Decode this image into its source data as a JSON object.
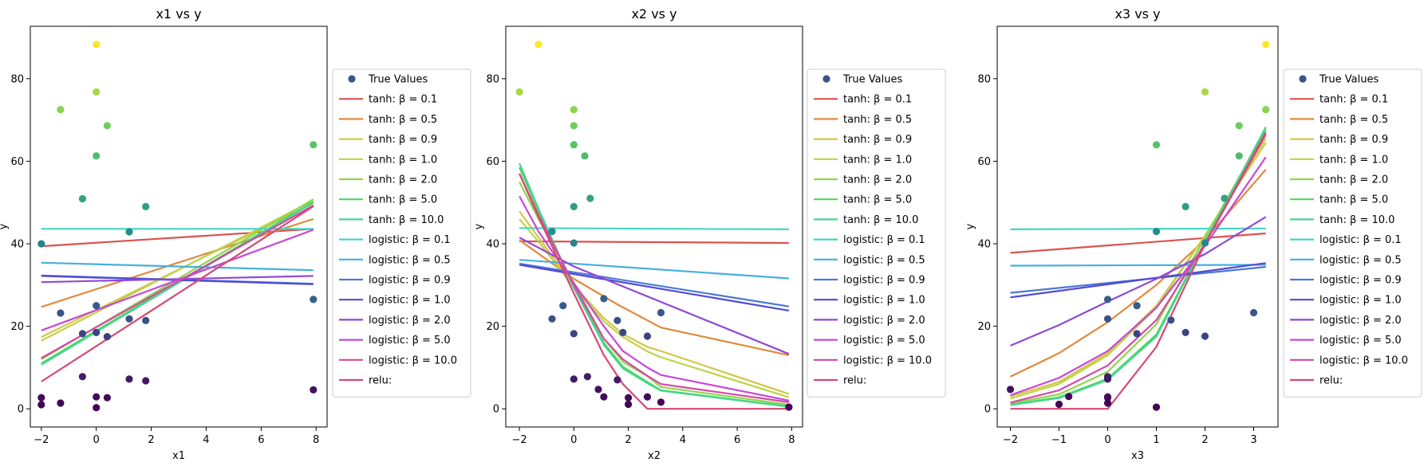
{
  "legend_entries": [
    {
      "label": "True Values",
      "kind": "scatter",
      "color": "#3b528b"
    },
    {
      "label": "tanh:  β = 0.1",
      "kind": "line",
      "color": "#d9534f"
    },
    {
      "label": "tanh:  β = 0.5",
      "kind": "line",
      "color": "#e08a3c"
    },
    {
      "label": "tanh:  β = 0.9",
      "kind": "line",
      "color": "#d4c648"
    },
    {
      "label": "tanh:  β = 1.0",
      "kind": "line",
      "color": "#bcd447"
    },
    {
      "label": "tanh:  β = 2.0",
      "kind": "line",
      "color": "#8ed64a"
    },
    {
      "label": "tanh:  β = 5.0",
      "kind": "line",
      "color": "#4fd65c"
    },
    {
      "label": "tanh:  β = 10.0",
      "kind": "line",
      "color": "#45d68f"
    },
    {
      "label": "logistic:  β = 0.1",
      "kind": "line",
      "color": "#45d6c3"
    },
    {
      "label": "logistic:  β = 0.5",
      "kind": "line",
      "color": "#45b0dc"
    },
    {
      "label": "logistic:  β = 0.9",
      "kind": "line",
      "color": "#4a78d6"
    },
    {
      "label": "logistic:  β = 1.0",
      "kind": "line",
      "color": "#5348d6"
    },
    {
      "label": "logistic:  β = 2.0",
      "kind": "line",
      "color": "#9048d6"
    },
    {
      "label": "logistic:  β = 5.0",
      "kind": "line",
      "color": "#c648d6"
    },
    {
      "label": "logistic:  β = 10.0",
      "kind": "line",
      "color": "#d648a8"
    },
    {
      "label": "relu:",
      "kind": "line",
      "color": "#d64874"
    }
  ],
  "chart_data": [
    {
      "type": "scatter",
      "title": "x1 vs y",
      "xlabel": "x1",
      "ylabel": "y",
      "xlim": [
        -2.4,
        8.4
      ],
      "ylim": [
        -4.4,
        92.7
      ],
      "xticks": [
        -2,
        0,
        2,
        4,
        6,
        8
      ],
      "yticks": [
        0,
        20,
        40,
        60,
        80
      ],
      "legend_position": "right",
      "scatter": [
        [
          0.0,
          88.3
        ],
        [
          -1.3,
          72.5
        ],
        [
          0.0,
          76.8
        ],
        [
          0.4,
          68.6
        ],
        [
          0.0,
          61.3
        ],
        [
          -0.5,
          50.9
        ],
        [
          1.8,
          49.0
        ],
        [
          1.2,
          42.9
        ],
        [
          -2.0,
          40.0
        ],
        [
          7.9,
          64.0
        ],
        [
          7.9,
          26.5
        ],
        [
          -1.3,
          23.2
        ],
        [
          0.0,
          25.0
        ],
        [
          -0.5,
          18.2
        ],
        [
          0.0,
          18.5
        ],
        [
          0.4,
          17.5
        ],
        [
          1.2,
          21.8
        ],
        [
          1.8,
          21.4
        ],
        [
          -0.5,
          7.8
        ],
        [
          1.2,
          7.2
        ],
        [
          1.8,
          6.8
        ],
        [
          -2.0,
          2.7
        ],
        [
          -2.0,
          1.0
        ],
        [
          -1.3,
          1.4
        ],
        [
          0.0,
          2.9
        ],
        [
          0.4,
          2.7
        ],
        [
          0.0,
          0.3
        ],
        [
          7.9,
          4.6
        ]
      ],
      "series": [
        {
          "name": "tanh:  β = 0.1",
          "x": [
            -2,
            7.9
          ],
          "y": [
            39.4,
            43.6
          ]
        },
        {
          "name": "tanh:  β = 0.5",
          "x": [
            -2,
            7.9
          ],
          "y": [
            24.7,
            46.0
          ]
        },
        {
          "name": "tanh:  β = 0.9",
          "x": [
            -2,
            7.9
          ],
          "y": [
            17.4,
            49.8
          ]
        },
        {
          "name": "tanh:  β = 1.0",
          "x": [
            -2,
            7.9
          ],
          "y": [
            16.5,
            50.5
          ]
        },
        {
          "name": "tanh:  β = 2.0",
          "x": [
            -2,
            7.9
          ],
          "y": [
            12.0,
            50.8
          ]
        },
        {
          "name": "tanh:  β = 5.0",
          "x": [
            -2,
            7.9
          ],
          "y": [
            11.0,
            50.2
          ]
        },
        {
          "name": "tanh:  β = 10.0",
          "x": [
            -2,
            7.9
          ],
          "y": [
            10.7,
            50.0
          ]
        },
        {
          "name": "logistic:  β = 0.1",
          "x": [
            -2,
            7.9
          ],
          "y": [
            43.6,
            43.6
          ]
        },
        {
          "name": "logistic:  β = 0.5",
          "x": [
            -2,
            7.9
          ],
          "y": [
            35.4,
            33.6
          ]
        },
        {
          "name": "logistic:  β = 0.9",
          "x": [
            -2,
            7.9
          ],
          "y": [
            32.3,
            30.3
          ]
        },
        {
          "name": "logistic:  β = 1.0",
          "x": [
            -2,
            7.9
          ],
          "y": [
            32.2,
            30.2
          ]
        },
        {
          "name": "logistic:  β = 2.0",
          "x": [
            -2,
            7.9
          ],
          "y": [
            30.7,
            32.2
          ]
        },
        {
          "name": "logistic:  β = 5.0",
          "x": [
            -2,
            7.9
          ],
          "y": [
            19.0,
            43.4
          ]
        },
        {
          "name": "logistic:  β = 10.0",
          "x": [
            -2,
            7.9
          ],
          "y": [
            12.3,
            49.3
          ]
        },
        {
          "name": "relu:",
          "x": [
            -2,
            7.9
          ],
          "y": [
            6.6,
            49.1
          ]
        }
      ]
    },
    {
      "type": "scatter",
      "title": "x2 vs y",
      "xlabel": "x2",
      "ylabel": "y",
      "xlim": [
        -2.5,
        8.4
      ],
      "ylim": [
        -4.4,
        92.7
      ],
      "xticks": [
        -2,
        0,
        2,
        4,
        6,
        8
      ],
      "yticks": [
        0,
        20,
        40,
        60,
        80
      ],
      "legend_position": "right",
      "scatter": [
        [
          -1.3,
          88.3
        ],
        [
          -2.0,
          76.8
        ],
        [
          0.0,
          72.5
        ],
        [
          0.0,
          68.6
        ],
        [
          0.0,
          64.0
        ],
        [
          0.4,
          61.3
        ],
        [
          0.6,
          51.0
        ],
        [
          0.0,
          49.0
        ],
        [
          -0.8,
          43.0
        ],
        [
          0.0,
          40.2
        ],
        [
          1.1,
          26.7
        ],
        [
          3.2,
          23.3
        ],
        [
          -0.4,
          25.0
        ],
        [
          -0.8,
          21.8
        ],
        [
          1.6,
          21.4
        ],
        [
          1.8,
          18.5
        ],
        [
          2.7,
          17.6
        ],
        [
          0.0,
          18.2
        ],
        [
          0.0,
          7.2
        ],
        [
          0.5,
          7.8
        ],
        [
          1.6,
          7.0
        ],
        [
          0.9,
          4.7
        ],
        [
          1.1,
          2.9
        ],
        [
          2.0,
          2.7
        ],
        [
          2.0,
          1.1
        ],
        [
          2.7,
          2.9
        ],
        [
          3.2,
          1.6
        ],
        [
          7.9,
          0.4
        ]
      ],
      "series": [
        {
          "name": "tanh:  β = 0.1",
          "x": [
            -2,
            7.9
          ],
          "y": [
            40.6,
            40.2
          ]
        },
        {
          "name": "tanh:  β = 0.5",
          "x": [
            -2,
            0,
            1.6,
            3.2,
            7.9
          ],
          "y": [
            40.9,
            31.5,
            25.3,
            19.7,
            13.0
          ]
        },
        {
          "name": "tanh:  β = 0.9",
          "x": [
            -2,
            -1.3,
            0,
            1.1,
            1.8,
            2.7,
            3.2,
            7.9
          ],
          "y": [
            47.9,
            41.5,
            29.9,
            22.0,
            18.1,
            15.0,
            14.0,
            3.6
          ]
        },
        {
          "name": "tanh:  β = 1.0",
          "x": [
            -2,
            -1.3,
            0,
            1.1,
            1.8,
            2.7,
            3.2,
            7.9
          ],
          "y": [
            46.0,
            40.5,
            29.5,
            21.2,
            17.4,
            13.9,
            12.5,
            2.8
          ]
        },
        {
          "name": "tanh:  β = 2.0",
          "x": [
            -2,
            -1.3,
            0,
            1.1,
            1.8,
            2.7,
            3.2,
            7.9
          ],
          "y": [
            55.0,
            46.0,
            30.5,
            17.0,
            11.4,
            7.9,
            5.3,
            1.0
          ]
        },
        {
          "name": "tanh:  β = 5.0",
          "x": [
            -2,
            -1.3,
            0,
            1.1,
            1.8,
            2.7,
            3.2,
            7.9
          ],
          "y": [
            58.5,
            48.0,
            29.5,
            16.0,
            10.2,
            6.5,
            4.5,
            0.6
          ]
        },
        {
          "name": "tanh:  β = 10.0",
          "x": [
            -2,
            -1.3,
            0,
            1.1,
            1.8,
            2.7,
            3.2,
            7.9
          ],
          "y": [
            59.5,
            48.5,
            29.3,
            15.5,
            9.8,
            6.2,
            4.4,
            0.5
          ]
        },
        {
          "name": "logistic:  β = 0.1",
          "x": [
            -2,
            7.9
          ],
          "y": [
            43.8,
            43.5
          ]
        },
        {
          "name": "logistic:  β = 0.5",
          "x": [
            -2,
            7.9
          ],
          "y": [
            36.1,
            31.6
          ]
        },
        {
          "name": "logistic:  β = 0.9",
          "x": [
            -2,
            7.9
          ],
          "y": [
            35.2,
            24.8
          ]
        },
        {
          "name": "logistic:  β = 1.0",
          "x": [
            -2,
            7.9
          ],
          "y": [
            34.9,
            23.8
          ]
        },
        {
          "name": "logistic:  β = 2.0",
          "x": [
            -2,
            0,
            7.9
          ],
          "y": [
            41.5,
            34.5,
            13.3
          ]
        },
        {
          "name": "logistic:  β = 5.0",
          "x": [
            -2,
            -1.3,
            0,
            1.1,
            1.8,
            2.7,
            3.2,
            7.9
          ],
          "y": [
            51.5,
            43.0,
            30.5,
            20.0,
            14.0,
            10.0,
            8.2,
            2.0
          ]
        },
        {
          "name": "logistic:  β = 10.0",
          "x": [
            -2,
            -1.3,
            0,
            1.1,
            1.8,
            2.7,
            3.2,
            7.9
          ],
          "y": [
            57.0,
            47.0,
            30.0,
            17.0,
            12.0,
            8.0,
            6.0,
            1.6
          ]
        },
        {
          "name": "relu:",
          "x": [
            -2,
            -1.3,
            0,
            1.1,
            1.8,
            2.7,
            3.2,
            7.9
          ],
          "y": [
            57.0,
            46.5,
            28.0,
            13.0,
            6.0,
            0.0,
            0.0,
            0.0
          ]
        }
      ]
    },
    {
      "type": "scatter",
      "title": "x3 vs y",
      "xlabel": "x3",
      "ylabel": "y",
      "xlim": [
        -2.27,
        3.5
      ],
      "ylim": [
        -4.4,
        92.7
      ],
      "xticks": [
        -2,
        -1,
        0,
        1,
        2,
        3
      ],
      "yticks": [
        0,
        20,
        40,
        60,
        80
      ],
      "legend_position": "right",
      "scatter": [
        [
          3.25,
          88.3
        ],
        [
          2.0,
          76.8
        ],
        [
          3.25,
          72.5
        ],
        [
          2.7,
          68.6
        ],
        [
          1.0,
          64.0
        ],
        [
          2.7,
          61.3
        ],
        [
          2.4,
          51.0
        ],
        [
          1.6,
          49.0
        ],
        [
          1.0,
          43.0
        ],
        [
          2.0,
          40.2
        ],
        [
          0.0,
          26.5
        ],
        [
          0.6,
          25.0
        ],
        [
          1.3,
          21.5
        ],
        [
          0.0,
          21.8
        ],
        [
          3.0,
          23.3
        ],
        [
          0.6,
          18.2
        ],
        [
          1.6,
          18.5
        ],
        [
          2.0,
          17.6
        ],
        [
          0.0,
          7.8
        ],
        [
          0.0,
          7.2
        ],
        [
          -0.8,
          3.0
        ],
        [
          -2.0,
          4.7
        ],
        [
          -1.0,
          1.1
        ],
        [
          0.0,
          2.9
        ],
        [
          0.0,
          2.7
        ],
        [
          0.0,
          1.4
        ],
        [
          1.0,
          0.4
        ]
      ],
      "series": [
        {
          "name": "tanh:  β = 0.1",
          "x": [
            -2,
            3.25
          ],
          "y": [
            37.8,
            42.5
          ]
        },
        {
          "name": "tanh:  β = 0.5",
          "x": [
            -2,
            -1,
            0,
            1,
            2,
            3.25
          ],
          "y": [
            7.8,
            13.5,
            21.0,
            30.0,
            41.0,
            58.0
          ]
        },
        {
          "name": "tanh:  β = 0.9",
          "x": [
            -2,
            -1,
            0,
            1,
            2,
            3.25
          ],
          "y": [
            3.0,
            6.5,
            13.5,
            25.0,
            42.0,
            64.5
          ]
        },
        {
          "name": "tanh:  β = 1.0",
          "x": [
            -2,
            -1,
            0,
            1,
            2,
            3.25
          ],
          "y": [
            2.5,
            6.0,
            13.0,
            24.5,
            42.0,
            65.5
          ]
        },
        {
          "name": "tanh:  β = 2.0",
          "x": [
            -2,
            -1,
            0,
            1,
            2,
            3.25
          ],
          "y": [
            1.3,
            3.5,
            9.0,
            20.5,
            41.5,
            67.5
          ]
        },
        {
          "name": "tanh:  β = 5.0",
          "x": [
            -2,
            -1,
            0,
            1,
            2,
            3.25
          ],
          "y": [
            1.0,
            2.8,
            7.3,
            18.0,
            40.5,
            68.0
          ]
        },
        {
          "name": "tanh:  β = 10.0",
          "x": [
            -2,
            -1,
            0,
            1,
            2,
            3.25
          ],
          "y": [
            0.9,
            2.6,
            7.0,
            17.5,
            40.3,
            68.3
          ]
        },
        {
          "name": "logistic:  β = 0.1",
          "x": [
            -2,
            3.25
          ],
          "y": [
            43.5,
            43.7
          ]
        },
        {
          "name": "logistic:  β = 0.5",
          "x": [
            -2,
            3.25
          ],
          "y": [
            34.7,
            34.9
          ]
        },
        {
          "name": "logistic:  β = 0.9",
          "x": [
            -2,
            3.25
          ],
          "y": [
            28.1,
            34.4
          ]
        },
        {
          "name": "logistic:  β = 1.0",
          "x": [
            -2,
            3.25
          ],
          "y": [
            27.0,
            35.3
          ]
        },
        {
          "name": "logistic:  β = 2.0",
          "x": [
            -2,
            -1,
            0,
            1,
            2,
            3.25
          ],
          "y": [
            15.3,
            20.3,
            26.0,
            31.5,
            37.5,
            46.5
          ]
        },
        {
          "name": "logistic:  β = 5.0",
          "x": [
            -2,
            -1,
            0,
            1,
            2,
            3.25
          ],
          "y": [
            3.3,
            7.5,
            14.0,
            24.5,
            39.5,
            61.0
          ]
        },
        {
          "name": "logistic:  β = 10.0",
          "x": [
            -2,
            -1,
            0,
            1,
            2,
            3.25
          ],
          "y": [
            1.5,
            4.5,
            10.5,
            21.5,
            40.0,
            66.5
          ]
        },
        {
          "name": "relu:",
          "x": [
            -2,
            -1,
            0,
            1,
            2,
            3.25
          ],
          "y": [
            0.0,
            0.0,
            0.0,
            15.0,
            40.0,
            67.0
          ]
        }
      ]
    }
  ]
}
